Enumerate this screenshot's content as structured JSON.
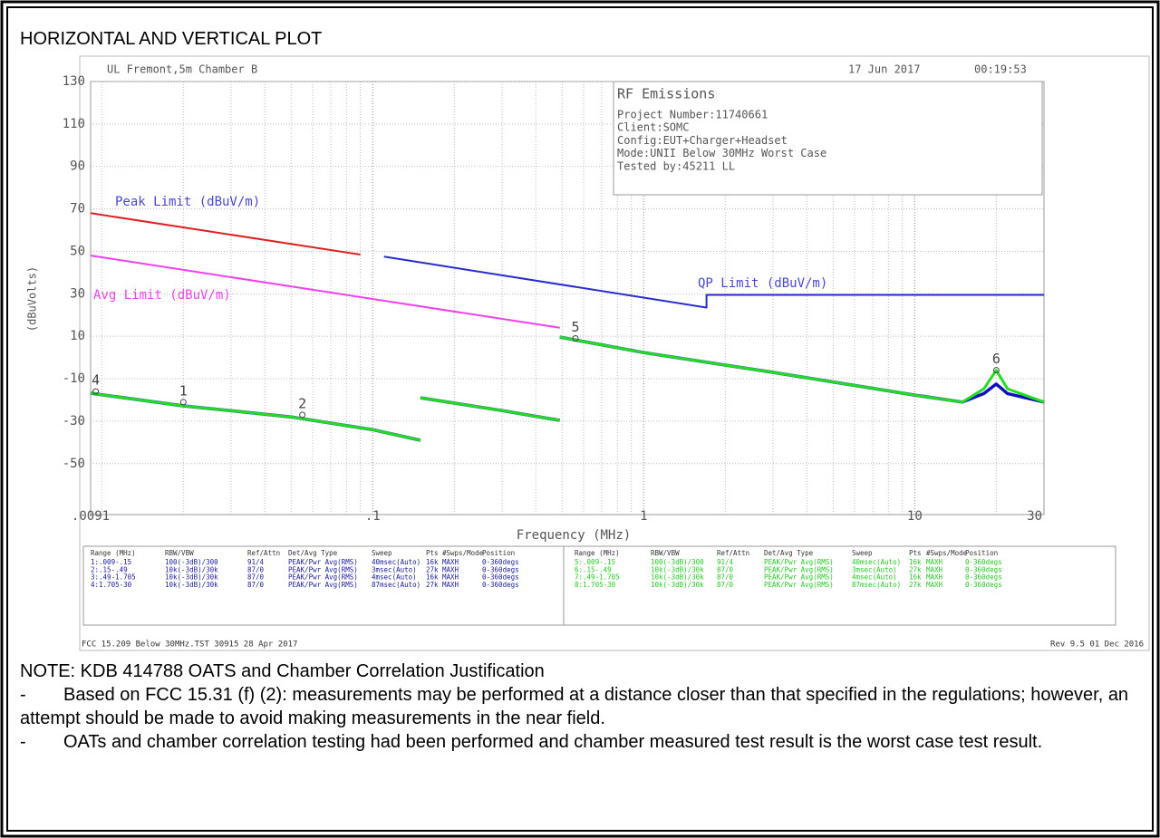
{
  "title": "HORIZONTAL AND VERTICAL PLOT",
  "chart_data": {
    "type": "line",
    "site": "UL Fremont,5m Chamber B",
    "date": "17 Jun 2017",
    "time": "00:19:53",
    "info_box": {
      "title": "RF Emissions",
      "lines": [
        "Project Number:11740661",
        "Client:SOMC",
        "Config:EUT+Charger+Headset",
        "Mode:UNII Below 30MHz Worst Case",
        "Tested by:45211 LL"
      ]
    },
    "x_label": "Frequency (MHz)",
    "y_label": "(dBuVolts)",
    "log_x": true,
    "grid": true,
    "xlim": [
      0.0091,
      30
    ],
    "ylim": [
      -74,
      130
    ],
    "xticks": [
      {
        "value": 0.0091,
        "label": ".0091"
      },
      {
        "value": 0.1,
        "label": ".1"
      },
      1,
      10,
      30
    ],
    "yticks": [
      130,
      110,
      90,
      70,
      50,
      30,
      10,
      -10,
      -30,
      -50
    ],
    "series": [
      {
        "name": "Peak Limit (dBuV/m)",
        "color": "#e02020",
        "label_color": "#4848d8",
        "x": [
          0.0091,
          0.09
        ],
        "values": [
          68,
          48.5
        ]
      },
      {
        "name": "Avg Limit (dBuV/m)",
        "color": "#f040f0",
        "label_color": "#f040f0",
        "x": [
          0.0091,
          0.49
        ],
        "values": [
          48,
          14
        ]
      },
      {
        "name": "QP Limit (dBuV/m)",
        "color": "#2a2ad0",
        "label_color": "#4848d8",
        "x": [
          0.11,
          1.705,
          1.705,
          30
        ],
        "values": [
          47.5,
          23.5,
          29.5,
          29.5
        ]
      },
      {
        "color": "#1010c0",
        "x": [
          0.0091,
          0.02,
          0.05,
          0.1,
          0.15,
          0.15,
          0.15,
          0.3,
          0.49,
          0.49,
          0.49,
          1,
          3,
          10,
          15,
          18,
          20,
          22,
          30
        ],
        "values": [
          -16.8,
          -22.8,
          -28,
          -34,
          -39,
          null,
          -19,
          -25,
          -29.6,
          null,
          9.6,
          2.3,
          -7,
          -17.7,
          -21,
          -17,
          -12.5,
          -17,
          -21
        ]
      },
      {
        "color": "#22dd22",
        "x": [
          0.0091,
          0.02,
          0.05,
          0.1,
          0.15,
          0.15,
          0.15,
          0.3,
          0.49,
          0.49,
          0.49,
          1,
          3,
          10,
          15,
          18,
          20,
          22,
          30
        ],
        "values": [
          -16.8,
          -22.8,
          -28,
          -34,
          -39,
          null,
          -19,
          -25,
          -29.6,
          null,
          9.6,
          2.3,
          -7,
          -17.7,
          -21,
          -14.7,
          -6,
          -14.7,
          -21
        ]
      }
    ],
    "annotations": [
      {
        "text": "4",
        "x": 0.0095,
        "y": -16
      },
      {
        "text": "1",
        "x": 0.02,
        "y": -21
      },
      {
        "text": "2",
        "x": 0.055,
        "y": -27
      },
      {
        "text": "5",
        "x": 0.56,
        "y": 9
      },
      {
        "text": "6",
        "x": 20,
        "y": -6
      }
    ],
    "settings_table": {
      "columns": [
        "Range (MHz)",
        "RBW/VBW",
        "Ref/Attn",
        "Det/Avg Type",
        "Sweep",
        "Pts",
        "#Swps/Mode",
        "Position"
      ],
      "groups": [
        {
          "color": "#1a1aa0",
          "rows": [
            [
              "1:.009-.15",
              "100(-3dB)/300",
              "91/4",
              "PEAK/Pwr Avg(RMS)",
              "40msec(Auto)",
              "16k",
              "MAXH",
              "0-360degs"
            ],
            [
              "2:.15-.49",
              "10k(-3dB)/30k",
              "87/0",
              "PEAK/Pwr Avg(RMS)",
              "3msec(Auto)",
              "27k",
              "MAXH",
              "0-360degs"
            ],
            [
              "3:.49-1.705",
              "10k(-3dB)/30k",
              "87/0",
              "PEAK/Pwr Avg(RMS)",
              "4msec(Auto)",
              "16k",
              "MAXH",
              "0-360degs"
            ],
            [
              "4:1.705-30",
              "10k(-3dB)/30k",
              "87/0",
              "PEAK/Pwr Avg(RMS)",
              "87msec(Auto)",
              "27k",
              "MAXH",
              "0-360degs"
            ]
          ]
        },
        {
          "color": "#22cc22",
          "rows": [
            [
              "5:.009-.15",
              "100(-3dB)/300",
              "91/4",
              "PEAK/Pwr Avg(RMS)",
              "40msec(Auto)",
              "16k",
              "MAXH",
              "0-360degs"
            ],
            [
              "6:.15-.49",
              "10k(-3dB)/30k",
              "87/0",
              "PEAK/Pwr Avg(RMS)",
              "3msec(Auto)",
              "27k",
              "MAXH",
              "0-360degs"
            ],
            [
              "7:.49-1.705",
              "10k(-3dB)/30k",
              "87/0",
              "PEAK/Pwr Avg(RMS)",
              "4msec(Auto)",
              "16k",
              "MAXH",
              "0-360degs"
            ],
            [
              "8:1.705-30",
              "10k(-3dB)/30k",
              "87/0",
              "PEAK/Pwr Avg(RMS)",
              "87msec(Auto)",
              "27k",
              "MAXH",
              "0-360degs"
            ]
          ]
        }
      ]
    },
    "footer_left": "FCC 15.209 Below 30MHz.TST 30915 28 Apr 2017",
    "footer_right": "Rev 9.5 01 Dec 2016"
  },
  "notes": {
    "heading": "NOTE: KDB 414788 OATS and Chamber Correlation Justification",
    "items": [
      {
        "bullet": "-",
        "text": "Based on FCC 15.31 (f) (2): measurements may be performed at a distance closer than that specified in the regulations; however, an attempt should be made to avoid making measurements in the near field."
      },
      {
        "bullet": "-",
        "text": "OATs and chamber correlation testing had been performed and chamber measured test result is the worst case test result."
      }
    ]
  }
}
